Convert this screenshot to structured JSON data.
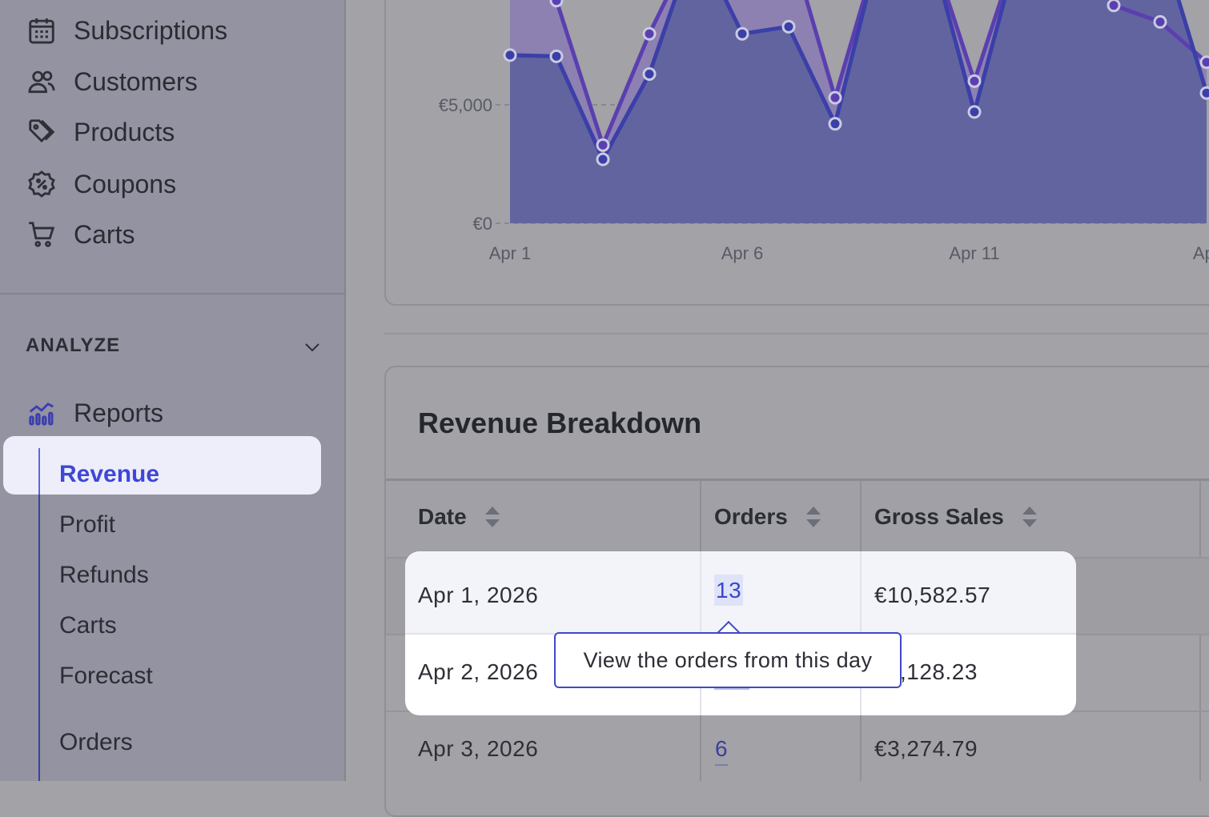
{
  "sidebar": {
    "nav_items": [
      {
        "label": "Subscriptions",
        "icon": "calendar-icon"
      },
      {
        "label": "Customers",
        "icon": "users-icon"
      },
      {
        "label": "Products",
        "icon": "tag-icon"
      },
      {
        "label": "Coupons",
        "icon": "coupon-icon"
      },
      {
        "label": "Carts",
        "icon": "cart-icon"
      }
    ],
    "section_title": "ANALYZE",
    "reports_label": "Reports",
    "sub_items": [
      {
        "label": "Revenue",
        "active": true
      },
      {
        "label": "Profit"
      },
      {
        "label": "Refunds"
      },
      {
        "label": "Carts"
      },
      {
        "label": "Forecast"
      },
      {
        "label": "Orders"
      }
    ]
  },
  "chart_data": {
    "type": "area",
    "x_tick_labels": [
      "Apr 1",
      "Apr 6",
      "Apr 11",
      "Apr"
    ],
    "y_tick_labels": [
      "€5,000",
      "€0"
    ],
    "yaxis_ticks": [
      5000,
      0
    ],
    "series": [
      {
        "color": "#3b3fa8",
        "values": [
          7100,
          7050,
          2700,
          6300,
          12000,
          8000,
          8300,
          4200,
          12000,
          12000,
          4700,
          12000,
          12000,
          12000,
          12000,
          5500
        ]
      },
      {
        "color": "#5b3fb0",
        "values": [
          12000,
          9400,
          3300,
          8000,
          12000,
          12000,
          12000,
          5300,
          12000,
          12000,
          6000,
          12000,
          12000,
          9200,
          8500,
          6800
        ]
      }
    ],
    "grid": true,
    "ylim_visible": [
      0,
      9400
    ]
  },
  "table": {
    "title": "Revenue Breakdown",
    "headers": [
      "Date",
      "Orders",
      "Gross Sales"
    ],
    "rows": [
      {
        "date": "Apr 1, 2026",
        "orders": "13",
        "gross": "€10,582.57"
      },
      {
        "date": "Apr 2, 2026",
        "orders": "",
        "gross": ",128.23"
      },
      {
        "date": "Apr 3, 2026",
        "orders": "6",
        "gross": "€3,274.79"
      }
    ]
  },
  "tooltip": {
    "text": "View the orders from this day"
  },
  "colors": {
    "accent": "#3e47d8",
    "active_bg": "#eeeefb",
    "sidebar_bg": "#9393a1"
  }
}
